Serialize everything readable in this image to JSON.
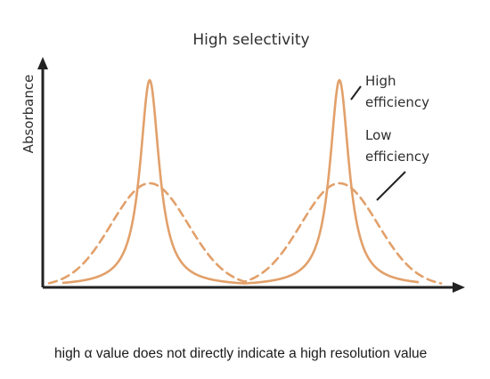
{
  "diagram": {
    "title": "High selectivity",
    "y_axis_label": "Absorbance",
    "curve_labels": {
      "high_line1": "High",
      "high_line2": "efficiency",
      "low_line1": "Low",
      "low_line2": "efficiency"
    },
    "colors": {
      "curve": "#e2a06a",
      "axis": "#222222"
    }
  },
  "caption": "high α value does not directly indicate a high resolution value"
}
